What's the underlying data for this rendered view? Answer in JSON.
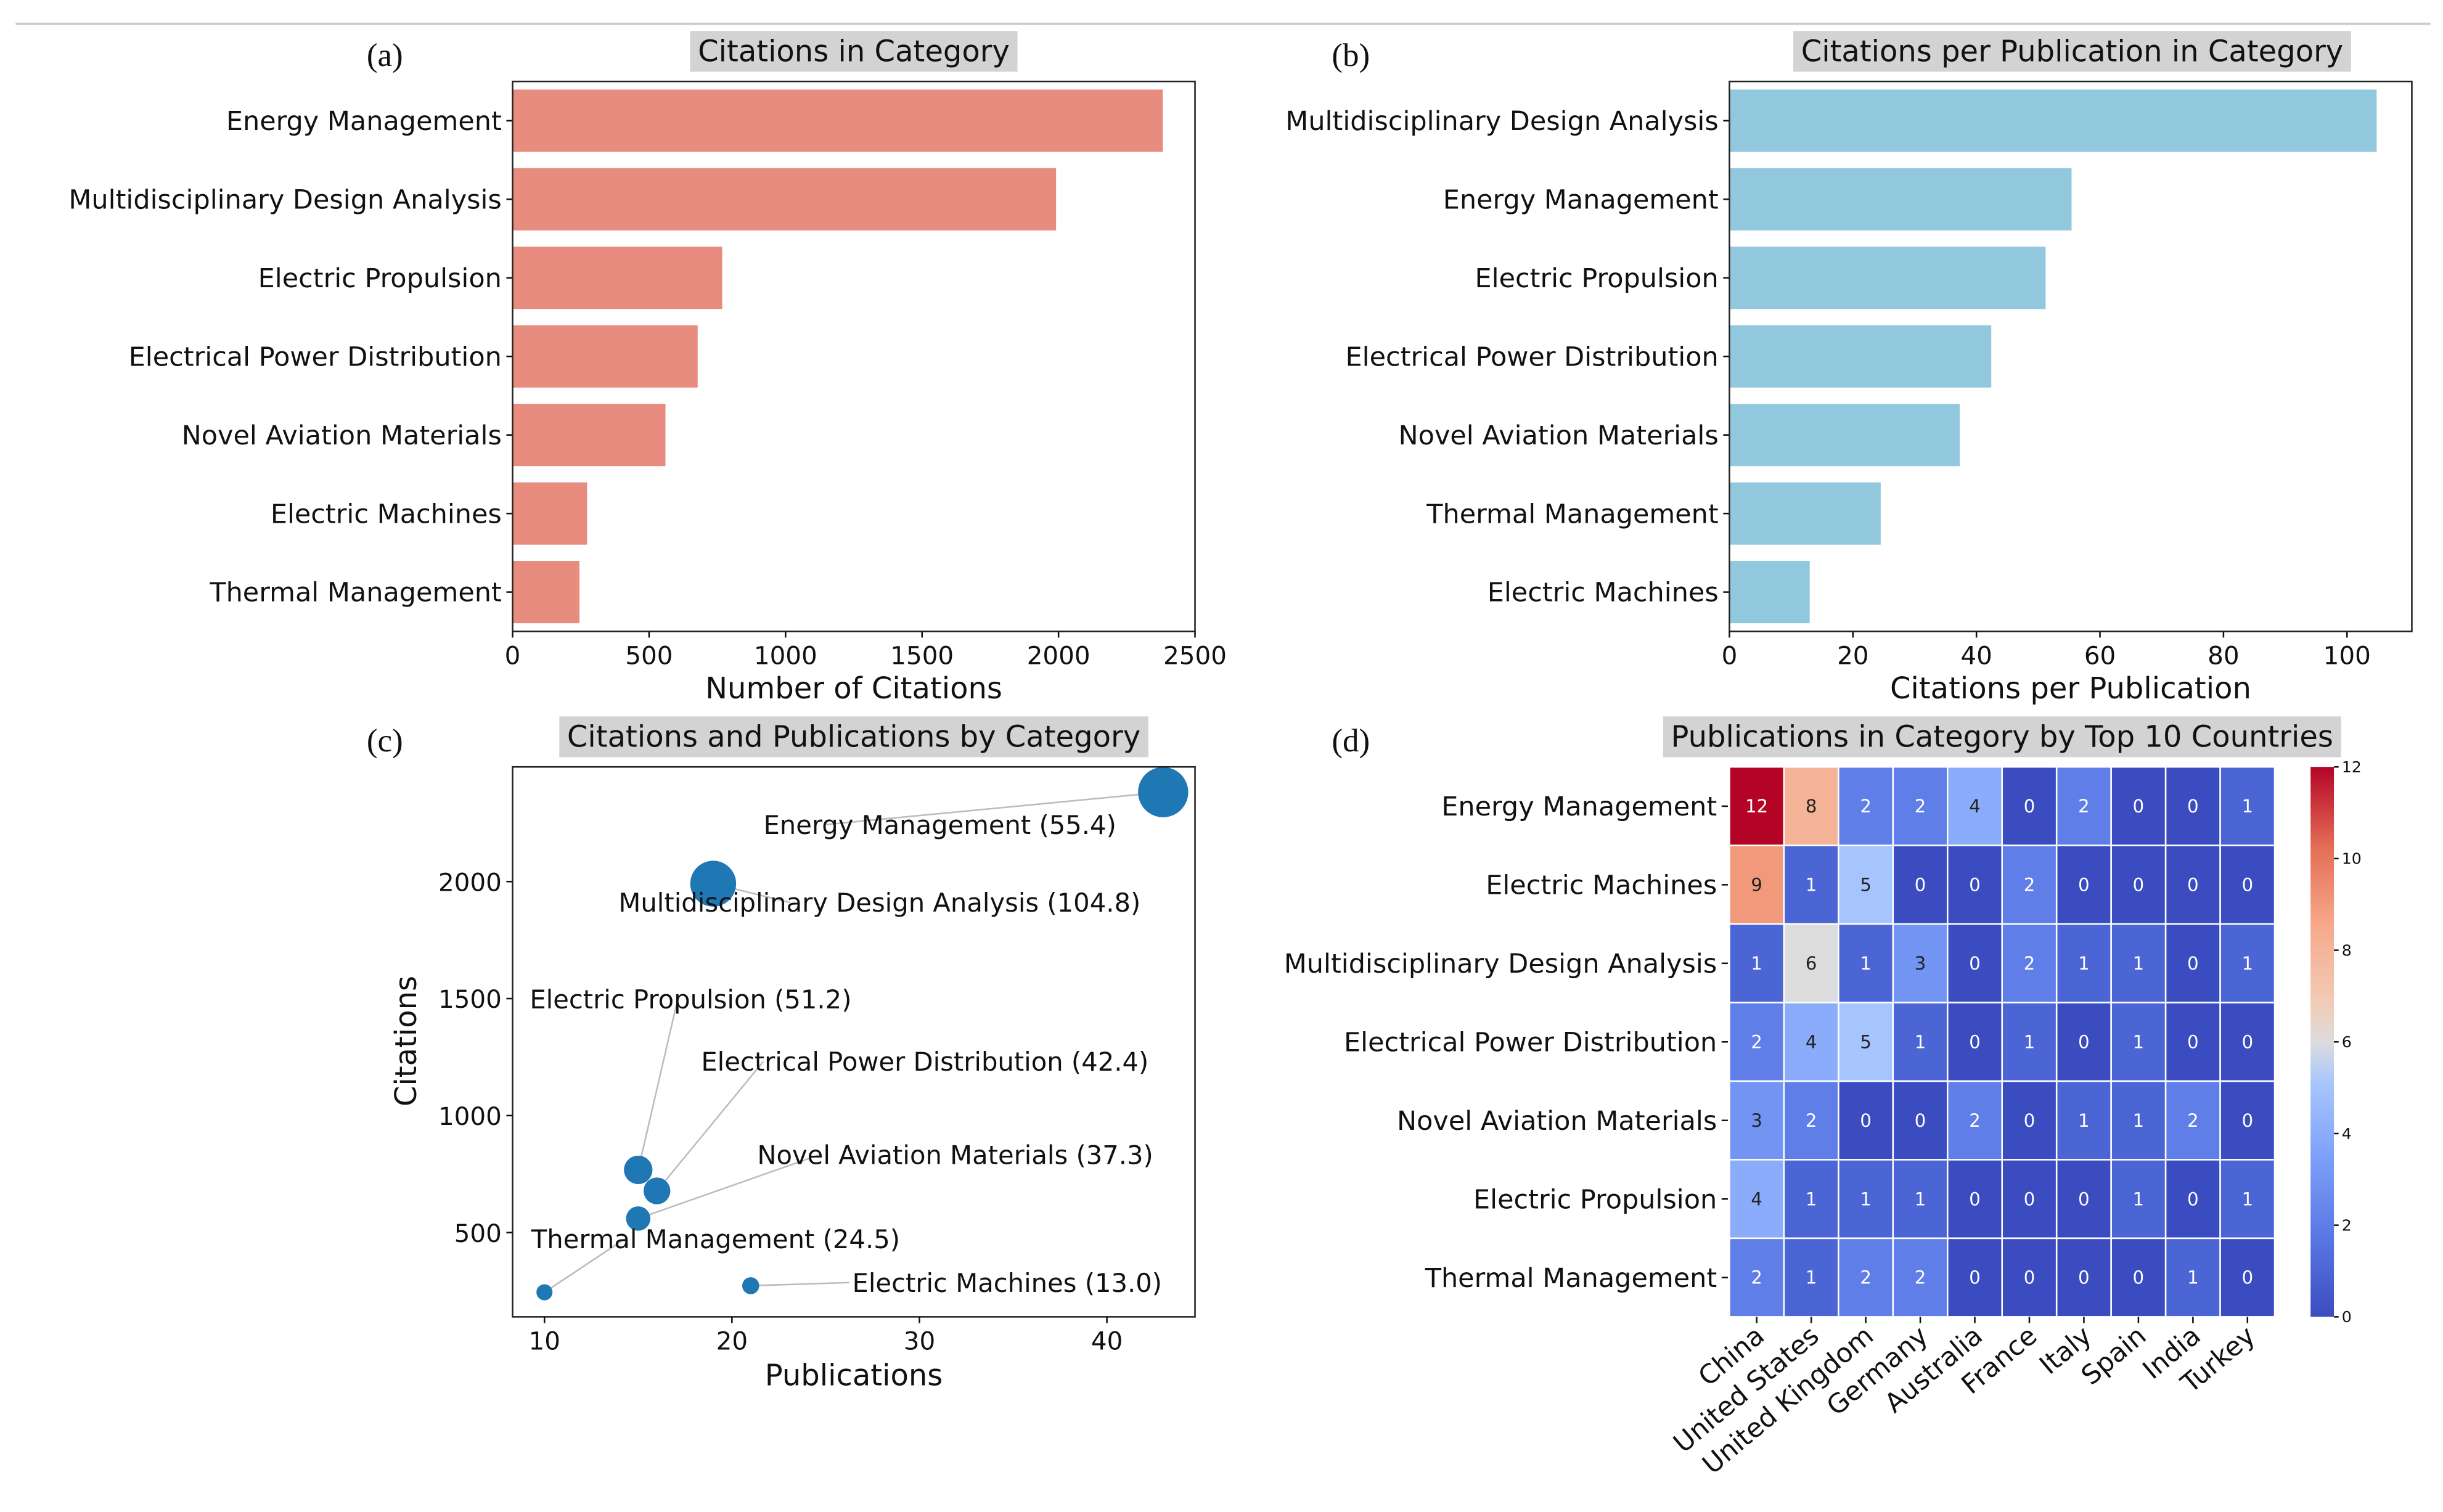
{
  "chart_data": [
    {
      "panel_label": "(a)",
      "type": "bar",
      "orientation": "horizontal",
      "title": "Citations in Category",
      "xlabel": "Number of Citations",
      "categories": [
        "Energy Management",
        "Multidisciplinary Design Analysis",
        "Electric Propulsion",
        "Electrical Power Distribution",
        "Novel Aviation Materials",
        "Electric Machines",
        "Thermal Management"
      ],
      "values": [
        2382,
        1991,
        768,
        678,
        560,
        273,
        245
      ],
      "xlim": [
        0,
        2500
      ],
      "xticks": [
        0,
        500,
        1000,
        1500,
        2000,
        2500
      ],
      "color": "#e88c80"
    },
    {
      "panel_label": "(b)",
      "type": "bar",
      "orientation": "horizontal",
      "title": "Citations per Publication in Category",
      "xlabel": "Citations per Publication",
      "categories": [
        "Multidisciplinary Design Analysis",
        "Energy Management",
        "Electric Propulsion",
        "Electrical Power Distribution",
        "Novel Aviation Materials",
        "Thermal Management",
        "Electric Machines"
      ],
      "values": [
        104.8,
        55.4,
        51.2,
        42.4,
        37.3,
        24.5,
        13.0
      ],
      "xlim": [
        0,
        110.5
      ],
      "xticks": [
        0,
        20,
        40,
        60,
        80,
        100
      ],
      "color": "#92c8de"
    },
    {
      "panel_label": "(c)",
      "type": "scatter",
      "title": "Citations and Publications by Category",
      "xlabel": "Publications",
      "ylabel": "Citations",
      "xlim": [
        8.3,
        44.7
      ],
      "ylim": [
        140,
        2490
      ],
      "xticks": [
        10,
        20,
        30,
        40
      ],
      "yticks": [
        500,
        1000,
        1500,
        2000
      ],
      "color": "#1f77b4",
      "points": [
        {
          "label": "Energy Management (55.4)",
          "x": 43,
          "y": 2382
        },
        {
          "label": "Multidisciplinary Design Analysis (104.8)",
          "x": 19,
          "y": 1991
        },
        {
          "label": "Electric Propulsion (51.2)",
          "x": 15,
          "y": 768
        },
        {
          "label": "Electrical Power Distribution (42.4)",
          "x": 16,
          "y": 678
        },
        {
          "label": "Novel Aviation Materials (37.3)",
          "x": 15,
          "y": 560
        },
        {
          "label": "Thermal Management (24.5)",
          "x": 10,
          "y": 245
        },
        {
          "label": "Electric Machines (13.0)",
          "x": 21,
          "y": 273
        }
      ]
    },
    {
      "panel_label": "(d)",
      "type": "heatmap",
      "title": "Publications in Category by Top 10 Countries",
      "rows": [
        "Energy Management",
        "Electric Machines",
        "Multidisciplinary Design Analysis",
        "Electrical Power Distribution",
        "Novel Aviation Materials",
        "Electric Propulsion",
        "Thermal Management"
      ],
      "columns": [
        "China",
        "United States",
        "United Kingdom",
        "Germany",
        "Australia",
        "France",
        "Italy",
        "Spain",
        "India",
        "Turkey"
      ],
      "values": [
        [
          12,
          8,
          2,
          2,
          4,
          0,
          2,
          0,
          0,
          1
        ],
        [
          9,
          1,
          5,
          0,
          0,
          2,
          0,
          0,
          0,
          0
        ],
        [
          1,
          6,
          1,
          3,
          0,
          2,
          1,
          1,
          0,
          1
        ],
        [
          2,
          4,
          5,
          1,
          0,
          1,
          0,
          1,
          0,
          0
        ],
        [
          3,
          2,
          0,
          0,
          2,
          0,
          1,
          1,
          2,
          0
        ],
        [
          4,
          1,
          1,
          1,
          0,
          0,
          0,
          1,
          0,
          1
        ],
        [
          2,
          1,
          2,
          2,
          0,
          0,
          0,
          0,
          1,
          0
        ]
      ],
      "colormap": "coolwarm",
      "colorbar_range": [
        0,
        12
      ],
      "colorbar_ticks": [
        0,
        2,
        4,
        6,
        8,
        10,
        12
      ]
    }
  ]
}
